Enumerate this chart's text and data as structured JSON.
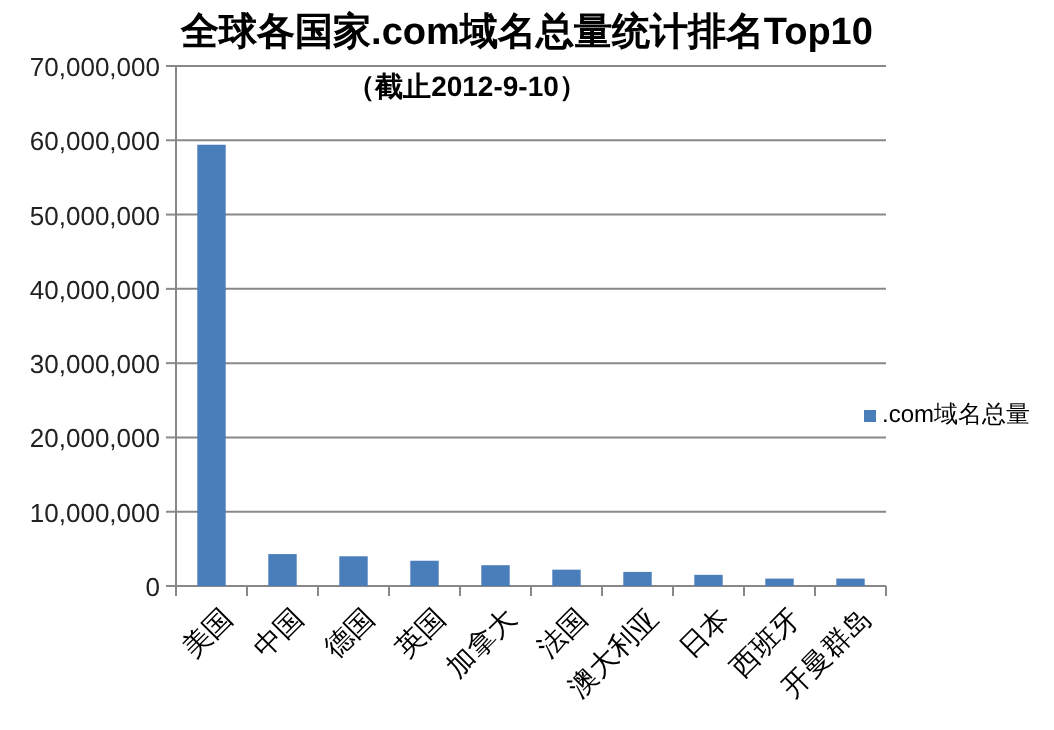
{
  "chart_data": {
    "type": "bar",
    "title": "全球各国家.com域名总量统计排名Top10",
    "subtitle": "（截止2012-9-10）",
    "categories": [
      "美国",
      "中国",
      "德国",
      "英国",
      "加拿大",
      "法国",
      "澳大利亚",
      "日本",
      "西班牙",
      "开曼群岛"
    ],
    "series": [
      {
        "name": ".com域名总量",
        "color": "#4a7ebb",
        "values": [
          59400000,
          4300000,
          4000000,
          3400000,
          2800000,
          2200000,
          1900000,
          1500000,
          1000000,
          1000000
        ]
      }
    ],
    "ylim": [
      0,
      70000000
    ],
    "yticks": [
      {
        "value": 0,
        "label": "0"
      },
      {
        "value": 10000000,
        "label": "10,000,000"
      },
      {
        "value": 20000000,
        "label": "20,000,000"
      },
      {
        "value": 30000000,
        "label": "30,000,000"
      },
      {
        "value": 40000000,
        "label": "40,000,000"
      },
      {
        "value": 50000000,
        "label": "50,000,000"
      },
      {
        "value": 60000000,
        "label": "60,000,000"
      },
      {
        "value": 70000000,
        "label": "70,000,000"
      }
    ],
    "grid": "y",
    "legend": "right"
  }
}
